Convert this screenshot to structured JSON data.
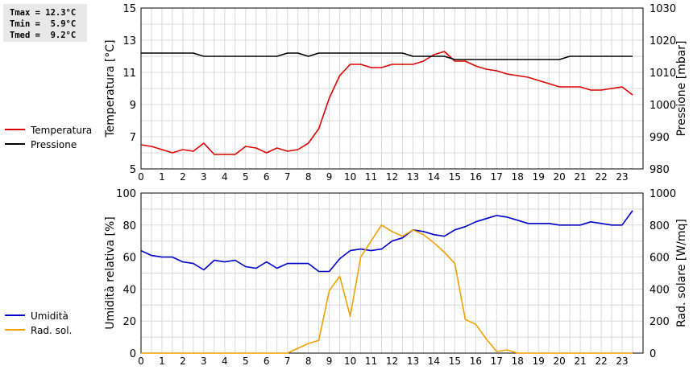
{
  "stats": {
    "tmax_line": "Tmax = 12.3°C",
    "tmin_line": "Tmin =  5.9°C",
    "tmed_line": "Tmed =  9.2°C"
  },
  "colors": {
    "temperature": "#dd0000",
    "pressure": "#000000",
    "humidity": "#0000cc",
    "radiation": "#f0a000",
    "grid": "#d8d8d8"
  },
  "chart_data": [
    {
      "type": "line",
      "xlabel": "",
      "xlim": [
        0,
        24
      ],
      "x_ticks": [
        "0",
        "1",
        "2",
        "3",
        "4",
        "5",
        "6",
        "7",
        "8",
        "9",
        "10",
        "11",
        "12",
        "13",
        "14",
        "15",
        "16",
        "17",
        "18",
        "19",
        "20",
        "21",
        "22",
        "23"
      ],
      "ylabel": "Temperatura [°C]",
      "ylim": [
        5,
        15
      ],
      "y_ticks": [
        "5",
        "7",
        "9",
        "11",
        "13",
        "15"
      ],
      "y2label": "Pressione [mbar]",
      "y2lim": [
        980,
        1030
      ],
      "y2_ticks": [
        "980",
        "990",
        "1000",
        "1010",
        "1020",
        "1030"
      ],
      "grid": true,
      "legend_position": "left",
      "series": [
        {
          "name": "Temperatura",
          "axis": "left",
          "color": "#dd0000",
          "x": [
            0,
            0.5,
            1,
            1.5,
            2,
            2.5,
            3,
            3.5,
            4,
            4.5,
            5,
            5.5,
            6,
            6.5,
            7,
            7.5,
            8,
            8.5,
            9,
            9.5,
            10,
            10.5,
            11,
            11.5,
            12,
            12.5,
            13,
            13.5,
            14,
            14.5,
            15,
            15.5,
            16,
            16.5,
            17,
            17.5,
            18,
            18.5,
            19,
            19.5,
            20,
            20.5,
            21,
            21.5,
            22,
            22.5,
            23,
            23.5
          ],
          "values": [
            6.5,
            6.4,
            6.2,
            6.0,
            6.2,
            6.1,
            6.6,
            5.9,
            5.9,
            5.9,
            6.4,
            6.3,
            6.0,
            6.3,
            6.1,
            6.2,
            6.6,
            7.5,
            9.4,
            10.8,
            11.5,
            11.5,
            11.3,
            11.3,
            11.5,
            11.5,
            11.5,
            11.7,
            12.1,
            12.3,
            11.7,
            11.7,
            11.4,
            11.2,
            11.1,
            10.9,
            10.8,
            10.7,
            10.5,
            10.3,
            10.1,
            10.1,
            10.1,
            9.9,
            9.9,
            10.0,
            10.1,
            9.6
          ]
        },
        {
          "name": "Pressione",
          "axis": "right",
          "color": "#000000",
          "x": [
            0,
            0.5,
            1,
            1.5,
            2,
            2.5,
            3,
            3.5,
            4,
            4.5,
            5,
            5.5,
            6,
            6.5,
            7,
            7.5,
            8,
            8.5,
            9,
            9.5,
            10,
            10.5,
            11,
            11.5,
            12,
            12.5,
            13,
            13.5,
            14,
            14.5,
            15,
            15.5,
            16,
            16.5,
            17,
            17.5,
            18,
            18.5,
            19,
            19.5,
            20,
            20.5,
            21,
            21.5,
            22,
            22.5,
            23,
            23.5
          ],
          "values": [
            1016,
            1016,
            1016,
            1016,
            1016,
            1016,
            1015,
            1015,
            1015,
            1015,
            1015,
            1015,
            1015,
            1015,
            1016,
            1016,
            1015,
            1016,
            1016,
            1016,
            1016,
            1016,
            1016,
            1016,
            1016,
            1016,
            1015,
            1015,
            1015,
            1015,
            1014,
            1014,
            1014,
            1014,
            1014,
            1014,
            1014,
            1014,
            1014,
            1014,
            1014,
            1015,
            1015,
            1015,
            1015,
            1015,
            1015,
            1015
          ]
        }
      ]
    },
    {
      "type": "line",
      "xlabel": "",
      "xlim": [
        0,
        24
      ],
      "x_ticks": [
        "0",
        "1",
        "2",
        "3",
        "4",
        "5",
        "6",
        "7",
        "8",
        "9",
        "10",
        "11",
        "12",
        "13",
        "14",
        "15",
        "16",
        "17",
        "18",
        "19",
        "20",
        "21",
        "22",
        "23"
      ],
      "ylabel": "Umidità relativa [%]",
      "ylim": [
        0,
        100
      ],
      "y_ticks": [
        "0",
        "20",
        "40",
        "60",
        "80",
        "100"
      ],
      "y2label": "Rad. solare [W/mq]",
      "y2lim": [
        0,
        1000
      ],
      "y2_ticks": [
        "0",
        "200",
        "400",
        "600",
        "800",
        "1000"
      ],
      "grid": true,
      "legend_position": "left",
      "series": [
        {
          "name": "Umidità",
          "axis": "left",
          "color": "#0000cc",
          "x": [
            0,
            0.5,
            1,
            1.5,
            2,
            2.5,
            3,
            3.5,
            4,
            4.5,
            5,
            5.5,
            6,
            6.5,
            7,
            7.5,
            8,
            8.5,
            9,
            9.5,
            10,
            10.5,
            11,
            11.5,
            12,
            12.5,
            13,
            13.5,
            14,
            14.5,
            15,
            15.5,
            16,
            16.5,
            17,
            17.5,
            18,
            18.5,
            19,
            19.5,
            20,
            20.5,
            21,
            21.5,
            22,
            22.5,
            23,
            23.5
          ],
          "values": [
            64,
            61,
            60,
            60,
            57,
            56,
            52,
            58,
            57,
            58,
            54,
            53,
            57,
            53,
            56,
            56,
            56,
            51,
            51,
            59,
            64,
            65,
            64,
            65,
            70,
            72,
            77,
            76,
            74,
            73,
            77,
            79,
            82,
            84,
            86,
            85,
            83,
            81,
            81,
            81,
            80,
            80,
            80,
            82,
            81,
            80,
            80,
            89
          ]
        },
        {
          "name": "Rad. sol.",
          "axis": "right",
          "color": "#f0a000",
          "x": [
            0,
            0.5,
            1,
            1.5,
            2,
            2.5,
            3,
            3.5,
            4,
            4.5,
            5,
            5.5,
            6,
            6.5,
            7,
            7.5,
            8,
            8.5,
            9,
            9.5,
            10,
            10.5,
            11,
            11.5,
            12,
            12.5,
            13,
            13.5,
            14,
            14.5,
            15,
            15.5,
            16,
            16.5,
            17,
            17.5,
            18,
            18.5,
            19,
            19.5,
            20,
            20.5,
            21,
            21.5,
            22,
            22.5,
            23,
            23.5
          ],
          "values": [
            0,
            0,
            0,
            0,
            0,
            0,
            0,
            0,
            0,
            0,
            0,
            0,
            0,
            0,
            0,
            30,
            60,
            80,
            390,
            480,
            230,
            600,
            700,
            800,
            760,
            730,
            770,
            740,
            690,
            630,
            560,
            210,
            180,
            90,
            10,
            20,
            0,
            0,
            0,
            0,
            0,
            0,
            0,
            0,
            0,
            0,
            0,
            0
          ]
        }
      ]
    }
  ]
}
